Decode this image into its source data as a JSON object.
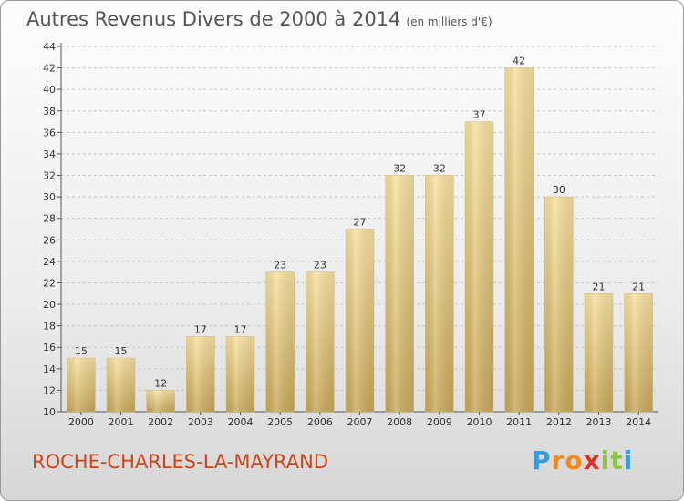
{
  "chart_data": {
    "type": "bar",
    "title": "Autres Revenus Divers de 2000 à 2014",
    "subtitle": "(en milliers d'€)",
    "categories": [
      "2000",
      "2001",
      "2002",
      "2003",
      "2004",
      "2005",
      "2006",
      "2007",
      "2008",
      "2009",
      "2010",
      "2011",
      "2012",
      "2013",
      "2014"
    ],
    "values": [
      15,
      15,
      12,
      17,
      17,
      23,
      23,
      27,
      32,
      32,
      37,
      42,
      30,
      21,
      21
    ],
    "ylim": [
      10,
      44
    ],
    "yticks": [
      10,
      12,
      14,
      16,
      18,
      20,
      22,
      24,
      26,
      28,
      30,
      32,
      34,
      36,
      38,
      40,
      42,
      44
    ],
    "grid": true,
    "bar_color": "#e9c97a"
  },
  "commune": "ROCHE-CHARLES-LA-MAYRAND",
  "logo": {
    "letters": [
      "P",
      "r",
      "o",
      "x",
      "i",
      "t",
      "i"
    ],
    "colors": [
      "#3a9ad9",
      "#f08a1c",
      "#f08a1c",
      "#d9302b",
      "#8cc63f",
      "#8cc63f",
      "#3a9ad9"
    ]
  }
}
